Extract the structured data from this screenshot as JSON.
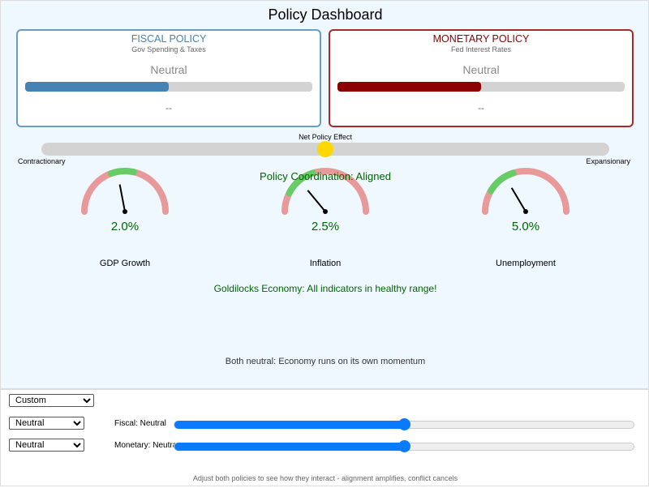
{
  "title": "Policy Dashboard",
  "fiscal": {
    "title": "FISCAL POLICY",
    "subtitle": "Gov Spending & Taxes",
    "stance": "Neutral",
    "level": 0.5,
    "detail": "--",
    "color": "#4682b4"
  },
  "monetary": {
    "title": "MONETARY POLICY",
    "subtitle": "Fed Interest Rates",
    "stance": "Neutral",
    "level": 0.5,
    "detail": "--",
    "color": "#8b0000"
  },
  "net": {
    "label": "Net Policy Effect",
    "left": "Contractionary",
    "right": "Expansionary",
    "position": 0.5,
    "knob_color": "#ffd700"
  },
  "coordination": "Policy Coordination: Aligned",
  "gauges": [
    {
      "name": "GDP Growth",
      "value": "2.0%",
      "needle": 0.44,
      "green": [
        0.39,
        0.57
      ]
    },
    {
      "name": "Inflation",
      "value": "2.5%",
      "needle": 0.28,
      "green": [
        0.15,
        0.4
      ]
    },
    {
      "name": "Unemployment",
      "value": "5.0%",
      "needle": 0.33,
      "green": [
        0.17,
        0.4
      ]
    }
  ],
  "status_message": "Goldilocks Economy: All indicators in healthy range!",
  "scenario_note": "Both neutral: Economy runs on its own momentum",
  "controls": {
    "preset": "Custom",
    "fiscal_select": "Neutral",
    "monetary_select": "Neutral",
    "fiscal_label": "Fiscal: Neutral",
    "monetary_label": "Monetary: Neutral",
    "fiscal_slider": 0.5,
    "monetary_slider": 0.5,
    "hint": "Adjust both policies to see how they interact - alignment amplifies, conflict cancels"
  }
}
